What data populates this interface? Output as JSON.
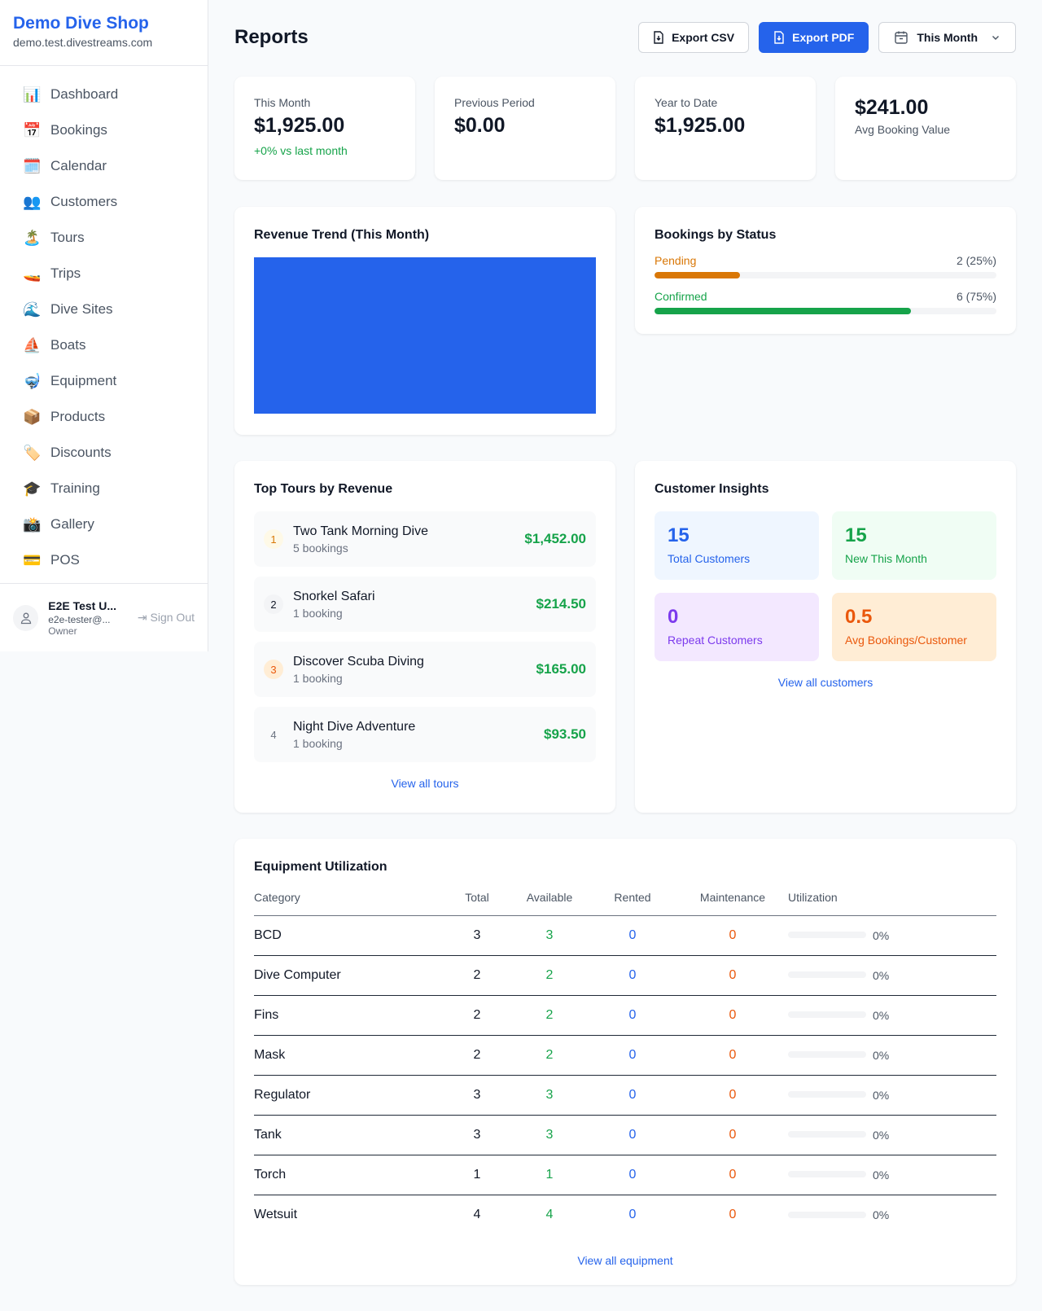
{
  "sidebar": {
    "brand": "Demo Dive Shop",
    "domain": "demo.test.divestreams.com",
    "items": [
      {
        "label": "Dashboard",
        "icon": "📊"
      },
      {
        "label": "Bookings",
        "icon": "📅"
      },
      {
        "label": "Calendar",
        "icon": "🗓️"
      },
      {
        "label": "Customers",
        "icon": "👥"
      },
      {
        "label": "Tours",
        "icon": "🏝️"
      },
      {
        "label": "Trips",
        "icon": "🚤"
      },
      {
        "label": "Dive Sites",
        "icon": "🌊"
      },
      {
        "label": "Boats",
        "icon": "⛵"
      },
      {
        "label": "Equipment",
        "icon": "🤿"
      },
      {
        "label": "Products",
        "icon": "📦"
      },
      {
        "label": "Discounts",
        "icon": "🏷️"
      },
      {
        "label": "Training",
        "icon": "🎓"
      },
      {
        "label": "Gallery",
        "icon": "📸"
      },
      {
        "label": "POS",
        "icon": "💳"
      }
    ],
    "user": {
      "name": "E2E Test U...",
      "email": "e2e-tester@...",
      "role": "Owner",
      "sign_out": "Sign Out"
    }
  },
  "header": {
    "title": "Reports",
    "export_csv": "Export CSV",
    "export_pdf": "Export PDF",
    "period": "This Month"
  },
  "stats": [
    {
      "label": "This Month",
      "value": "$1,925.00",
      "change": "+0% vs last month"
    },
    {
      "label": "Previous Period",
      "value": "$0.00"
    },
    {
      "label": "Year to Date",
      "value": "$1,925.00"
    },
    {
      "label": "Avg Booking Value",
      "value": "$241.00"
    }
  ],
  "revenue_trend": {
    "title": "Revenue Trend (This Month)",
    "color": "#2563eb"
  },
  "bookings_by_status": {
    "title": "Bookings by Status",
    "items": [
      {
        "label": "Pending",
        "count": "2 (25%)",
        "percent": 25,
        "color": "#d97706"
      },
      {
        "label": "Confirmed",
        "count": "6 (75%)",
        "percent": 75,
        "color": "#16a34a"
      }
    ]
  },
  "top_tours": {
    "title": "Top Tours by Revenue",
    "items": [
      {
        "rank": "1",
        "name": "Two Tank Morning Dive",
        "bookings": "5 bookings",
        "revenue": "$1,452.00"
      },
      {
        "rank": "2",
        "name": "Snorkel Safari",
        "bookings": "1 booking",
        "revenue": "$214.50"
      },
      {
        "rank": "3",
        "name": "Discover Scuba Diving",
        "bookings": "1 booking",
        "revenue": "$165.00"
      },
      {
        "rank": "4",
        "name": "Night Dive Adventure",
        "bookings": "1 booking",
        "revenue": "$93.50"
      }
    ],
    "view_all": "View all tours"
  },
  "customer_insights": {
    "title": "Customer Insights",
    "items": [
      {
        "value": "15",
        "label": "Total Customers"
      },
      {
        "value": "15",
        "label": "New This Month"
      },
      {
        "value": "0",
        "label": "Repeat Customers"
      },
      {
        "value": "0.5",
        "label": "Avg Bookings/Customer"
      }
    ],
    "view_all": "View all customers"
  },
  "equipment": {
    "title": "Equipment Utilization",
    "columns": [
      "Category",
      "Total",
      "Available",
      "Rented",
      "Maintenance",
      "Utilization"
    ],
    "rows": [
      {
        "category": "BCD",
        "total": "3",
        "available": "3",
        "rented": "0",
        "maintenance": "0",
        "utilization": "0%"
      },
      {
        "category": "Dive Computer",
        "total": "2",
        "available": "2",
        "rented": "0",
        "maintenance": "0",
        "utilization": "0%"
      },
      {
        "category": "Fins",
        "total": "2",
        "available": "2",
        "rented": "0",
        "maintenance": "0",
        "utilization": "0%"
      },
      {
        "category": "Mask",
        "total": "2",
        "available": "2",
        "rented": "0",
        "maintenance": "0",
        "utilization": "0%"
      },
      {
        "category": "Regulator",
        "total": "3",
        "available": "3",
        "rented": "0",
        "maintenance": "0",
        "utilization": "0%"
      },
      {
        "category": "Tank",
        "total": "3",
        "available": "3",
        "rented": "0",
        "maintenance": "0",
        "utilization": "0%"
      },
      {
        "category": "Torch",
        "total": "1",
        "available": "1",
        "rented": "0",
        "maintenance": "0",
        "utilization": "0%"
      },
      {
        "category": "Wetsuit",
        "total": "4",
        "available": "4",
        "rented": "0",
        "maintenance": "0",
        "utilization": "0%"
      }
    ],
    "view_all": "View all equipment"
  }
}
